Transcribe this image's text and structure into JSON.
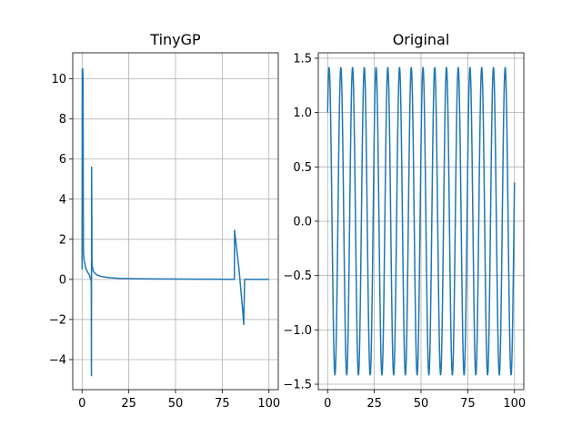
{
  "chart_data": [
    {
      "type": "line",
      "title": "TinyGP",
      "xlabel": "",
      "ylabel": "",
      "xlim": [
        -5,
        105
      ],
      "ylim": [
        -5.5,
        11.3
      ],
      "xticks": [
        0,
        25,
        50,
        75,
        100
      ],
      "xtick_labels": [
        "0",
        "25",
        "50",
        "75",
        "100"
      ],
      "yticks": [
        -4,
        -2,
        0,
        2,
        4,
        6,
        8,
        10
      ],
      "ytick_labels": [
        "−4",
        "−2",
        "0",
        "2",
        "4",
        "6",
        "8",
        "10"
      ],
      "grid": true,
      "color": "#1f77b4",
      "series": [
        {
          "x": [
            0.0,
            0.1,
            0.3,
            0.5,
            0.7,
            1.0,
            2.0,
            3.0,
            4.0,
            4.9,
            5.0,
            5.1,
            5.3,
            5.5,
            6.0,
            7.0,
            8.0,
            10.0,
            12.0,
            15.0,
            20.0,
            25.0,
            30.0,
            40.0,
            50.0,
            60.0,
            70.0,
            80.0,
            81.5,
            81.6,
            84.0,
            86.0,
            86.5,
            87.0,
            90.0,
            95.0,
            100.0
          ],
          "y": [
            0.5,
            10.5,
            10.5,
            10.0,
            1.5,
            1.0,
            0.55,
            0.35,
            0.2,
            -0.1,
            -4.8,
            5.6,
            0.9,
            0.6,
            0.4,
            0.3,
            0.22,
            0.15,
            0.12,
            0.08,
            0.05,
            0.04,
            0.03,
            0.02,
            0.015,
            0.01,
            0.01,
            0.0,
            0.0,
            2.45,
            0.5,
            -1.6,
            -2.25,
            0.0,
            0.0,
            0.0,
            0.0
          ]
        }
      ]
    },
    {
      "type": "line",
      "title": "Original",
      "xlabel": "",
      "ylabel": "",
      "xlim": [
        -5,
        105
      ],
      "ylim": [
        -1.55,
        1.55
      ],
      "xticks": [
        0,
        25,
        50,
        75,
        100
      ],
      "xtick_labels": [
        "0",
        "25",
        "50",
        "75",
        "100"
      ],
      "yticks": [
        -1.5,
        -1.0,
        -0.5,
        0.0,
        0.5,
        1.0,
        1.5
      ],
      "ytick_labels": [
        "−1.5",
        "−1.0",
        "−0.5",
        "0.0",
        "0.5",
        "1.0",
        "1.5"
      ],
      "grid": true,
      "color": "#1f77b4",
      "series": [
        {
          "function": "sin(x) + cos(x)",
          "x_range": [
            0,
            100
          ],
          "amplitude": 1.414
        }
      ]
    }
  ]
}
